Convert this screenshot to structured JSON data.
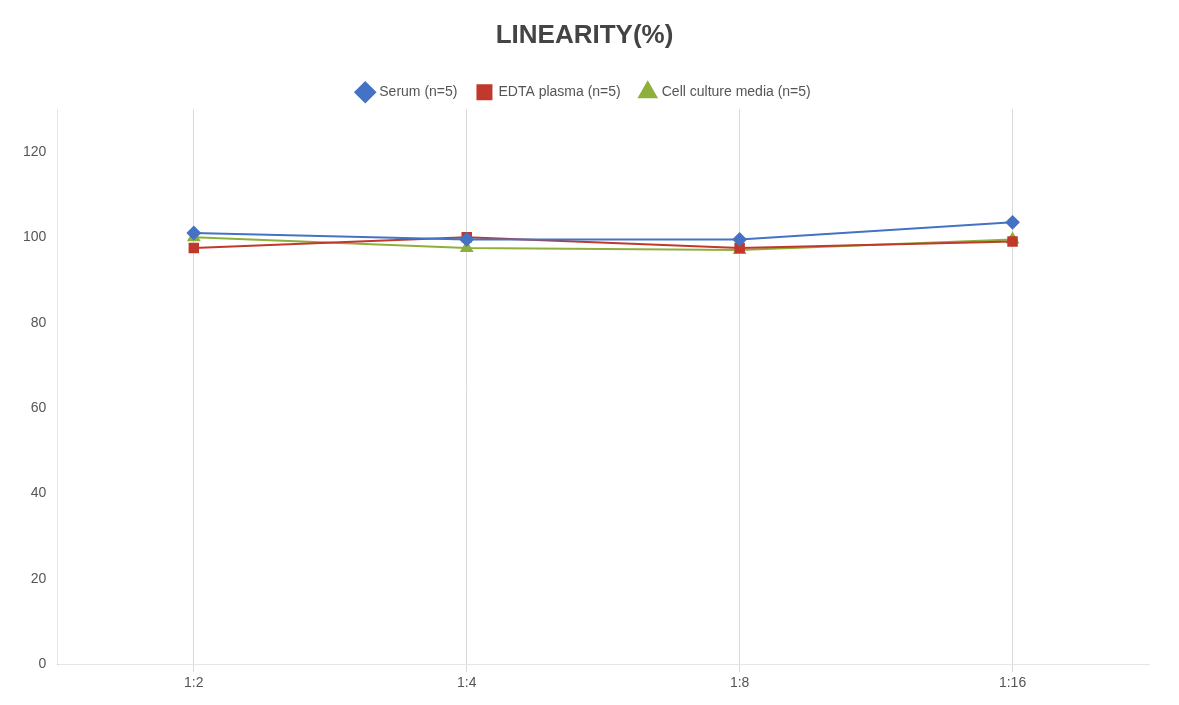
{
  "chart_data": {
    "type": "line",
    "title": "LINEARITY(%)",
    "categories": [
      "1:2",
      "1:4",
      "1:8",
      "1:16"
    ],
    "series": [
      {
        "name": "Serum (n=5)",
        "color": "#4472C4",
        "marker": "diamond",
        "values": [
          101,
          99.5,
          99.5,
          103.5
        ]
      },
      {
        "name": "EDTA plasma (n=5)",
        "color": "#C0392B",
        "marker": "square",
        "values": [
          97.5,
          100,
          97.5,
          99
        ]
      },
      {
        "name": "Cell culture media (n=5)",
        "color": "#8DB03B",
        "marker": "triangle",
        "values": [
          100,
          97.5,
          97,
          99.5
        ]
      }
    ],
    "ylim": [
      0,
      130
    ],
    "yticks": [
      0,
      20,
      40,
      60,
      80,
      100,
      120
    ],
    "grid": "x",
    "legend": "top"
  }
}
